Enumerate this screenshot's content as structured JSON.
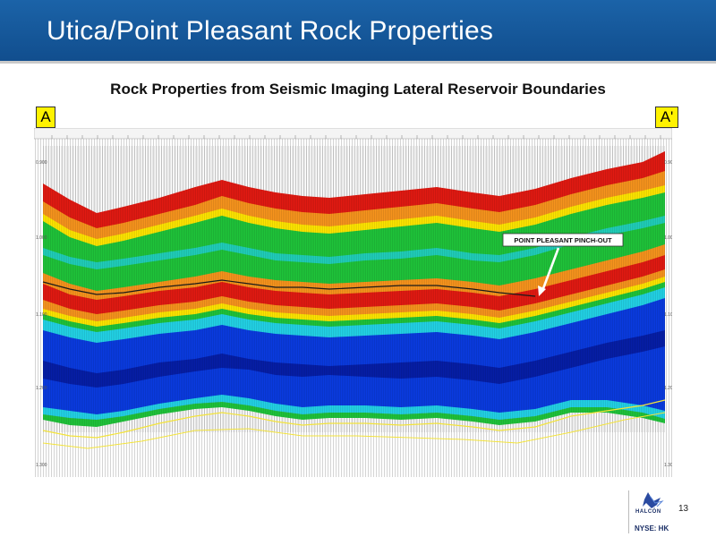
{
  "header": {
    "title": "Utica/Point Pleasant Rock Properties",
    "color": "#1b63a8"
  },
  "subtitle": "Rock Properties from Seismic Imaging Lateral Reservoir Boundaries",
  "section_labels": {
    "start": "A",
    "end": "A'"
  },
  "annotation": {
    "label": "POINT PLEASANT PINCH-OUT"
  },
  "footer": {
    "page_number": "13",
    "logo_name": "HALCÓN",
    "ticker": "NYSE: HK"
  },
  "colors": {
    "red": "#e21a12",
    "orange": "#f7941d",
    "yellow": "#ffe600",
    "green": "#1fc43a",
    "cyan": "#22d3e6",
    "blue": "#0a3be0",
    "navy": "#061a9c"
  }
}
